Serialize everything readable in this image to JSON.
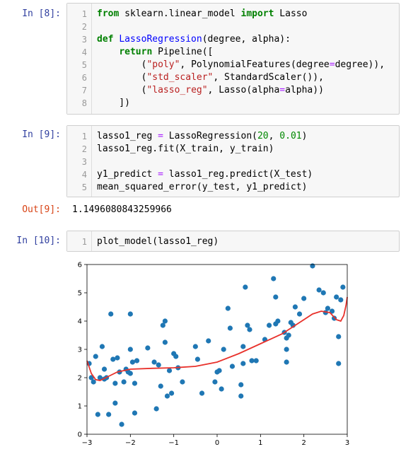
{
  "cells": [
    {
      "prompt": "In [8]:",
      "lines": [
        {
          "n": "1",
          "html": "<span class=\"kw\">from</span> sklearn.linear_model <span class=\"kw\">import</span> Lasso"
        },
        {
          "n": "2",
          "html": ""
        },
        {
          "n": "3",
          "html": "<span class=\"kw\">def</span> <span class=\"fn\">LassoRegression</span>(degree, alpha):"
        },
        {
          "n": "4",
          "html": "    <span class=\"kw\">return</span> Pipeline(["
        },
        {
          "n": "5",
          "html": "        (<span class=\"str\">\"poly\"</span>, PolynomialFeatures(degree<span class=\"op\">=</span>degree)),"
        },
        {
          "n": "6",
          "html": "        (<span class=\"str\">\"std_scaler\"</span>, StandardScaler()),"
        },
        {
          "n": "7",
          "html": "        (<span class=\"str\">\"lasso_reg\"</span>, Lasso(alpha<span class=\"op\">=</span>alpha))"
        },
        {
          "n": "8",
          "html": "    ])"
        }
      ]
    },
    {
      "prompt": "In [9]:",
      "lines": [
        {
          "n": "1",
          "html": "lasso1_reg <span class=\"op\">=</span> LassoRegression(<span class=\"num\">20</span>, <span class=\"num\">0.01</span>)"
        },
        {
          "n": "2",
          "html": "lasso1_reg.fit(X_train, y_train)"
        },
        {
          "n": "3",
          "html": ""
        },
        {
          "n": "4",
          "html": "y1_predict <span class=\"op\">=</span> lasso1_reg.predict(X_test)"
        },
        {
          "n": "5",
          "html": "mean_squared_error(y_test, y1_predict)"
        }
      ]
    },
    {
      "prompt": "In [10]:",
      "lines": [
        {
          "n": "1",
          "html": "plot_model(lasso1_reg)"
        }
      ]
    }
  ],
  "output": {
    "prompt": "Out[9]:",
    "value": "1.1496080843259966"
  },
  "chart_data": {
    "type": "scatter",
    "xlim": [
      -3,
      3
    ],
    "ylim": [
      0,
      6
    ],
    "xticks": [
      "−3",
      "−2",
      "−1",
      "0",
      "1",
      "2",
      "3"
    ],
    "yticks": [
      "0",
      "1",
      "2",
      "3",
      "4",
      "5",
      "6"
    ],
    "point_color": "#1f77b4",
    "line_color": "#e8312b",
    "points": [
      [
        -2.95,
        2.5
      ],
      [
        -2.9,
        2.0
      ],
      [
        -2.85,
        1.85
      ],
      [
        -2.8,
        2.75
      ],
      [
        -2.75,
        0.7
      ],
      [
        -2.7,
        2.0
      ],
      [
        -2.65,
        3.1
      ],
      [
        -2.6,
        2.3
      ],
      [
        -2.6,
        1.95
      ],
      [
        -2.55,
        2.0
      ],
      [
        -2.5,
        0.7
      ],
      [
        -2.45,
        4.25
      ],
      [
        -2.4,
        2.65
      ],
      [
        -2.35,
        1.1
      ],
      [
        -2.35,
        1.8
      ],
      [
        -2.3,
        2.7
      ],
      [
        -2.25,
        2.2
      ],
      [
        -2.2,
        0.35
      ],
      [
        -2.15,
        1.85
      ],
      [
        -2.1,
        2.3
      ],
      [
        -2.05,
        2.2
      ],
      [
        -2.0,
        2.15
      ],
      [
        -2.0,
        4.25
      ],
      [
        -2.0,
        3.0
      ],
      [
        -1.95,
        2.55
      ],
      [
        -1.9,
        1.8
      ],
      [
        -1.9,
        0.75
      ],
      [
        -1.85,
        2.6
      ],
      [
        -1.6,
        3.05
      ],
      [
        -1.45,
        2.55
      ],
      [
        -1.4,
        0.9
      ],
      [
        -1.35,
        2.45
      ],
      [
        -1.3,
        1.7
      ],
      [
        -1.25,
        3.85
      ],
      [
        -1.2,
        4.0
      ],
      [
        -1.2,
        3.25
      ],
      [
        -1.15,
        1.35
      ],
      [
        -1.1,
        2.25
      ],
      [
        -1.05,
        1.45
      ],
      [
        -1.0,
        2.85
      ],
      [
        -0.95,
        2.75
      ],
      [
        -0.9,
        2.35
      ],
      [
        -0.8,
        1.85
      ],
      [
        -0.5,
        3.1
      ],
      [
        -0.45,
        2.65
      ],
      [
        -0.35,
        1.45
      ],
      [
        -0.2,
        3.3
      ],
      [
        -0.05,
        1.85
      ],
      [
        0.0,
        2.2
      ],
      [
        0.05,
        2.25
      ],
      [
        0.1,
        1.6
      ],
      [
        0.15,
        3.0
      ],
      [
        0.25,
        4.45
      ],
      [
        0.3,
        3.75
      ],
      [
        0.35,
        2.4
      ],
      [
        0.55,
        1.75
      ],
      [
        0.55,
        1.35
      ],
      [
        0.6,
        2.5
      ],
      [
        0.6,
        3.1
      ],
      [
        0.65,
        5.2
      ],
      [
        0.7,
        3.85
      ],
      [
        0.75,
        3.7
      ],
      [
        0.8,
        2.6
      ],
      [
        0.9,
        2.6
      ],
      [
        1.1,
        3.35
      ],
      [
        1.2,
        3.85
      ],
      [
        1.3,
        5.5
      ],
      [
        1.35,
        4.85
      ],
      [
        1.35,
        3.9
      ],
      [
        1.4,
        4.0
      ],
      [
        1.55,
        3.6
      ],
      [
        1.6,
        3.4
      ],
      [
        1.6,
        3.0
      ],
      [
        1.6,
        2.55
      ],
      [
        1.65,
        3.5
      ],
      [
        1.7,
        3.95
      ],
      [
        1.75,
        3.85
      ],
      [
        1.8,
        4.5
      ],
      [
        1.9,
        4.25
      ],
      [
        2.0,
        4.8
      ],
      [
        2.2,
        5.95
      ],
      [
        2.35,
        5.1
      ],
      [
        2.45,
        5.0
      ],
      [
        2.5,
        4.3
      ],
      [
        2.55,
        4.45
      ],
      [
        2.65,
        4.35
      ],
      [
        2.7,
        4.1
      ],
      [
        2.75,
        4.85
      ],
      [
        2.8,
        2.5
      ],
      [
        2.8,
        3.45
      ],
      [
        2.85,
        4.75
      ],
      [
        2.9,
        5.2
      ]
    ],
    "curve": [
      [
        -3.0,
        2.6
      ],
      [
        -2.9,
        2.15
      ],
      [
        -2.8,
        1.93
      ],
      [
        -2.7,
        1.9
      ],
      [
        -2.5,
        2.05
      ],
      [
        -2.3,
        2.2
      ],
      [
        -2.0,
        2.3
      ],
      [
        -1.5,
        2.33
      ],
      [
        -1.0,
        2.35
      ],
      [
        -0.5,
        2.4
      ],
      [
        0.0,
        2.55
      ],
      [
        0.5,
        2.85
      ],
      [
        1.0,
        3.2
      ],
      [
        1.5,
        3.55
      ],
      [
        1.8,
        3.85
      ],
      [
        2.0,
        4.05
      ],
      [
        2.2,
        4.25
      ],
      [
        2.4,
        4.35
      ],
      [
        2.6,
        4.3
      ],
      [
        2.75,
        4.05
      ],
      [
        2.85,
        4.0
      ],
      [
        2.92,
        4.2
      ],
      [
        2.97,
        4.55
      ],
      [
        3.0,
        4.85
      ]
    ]
  }
}
